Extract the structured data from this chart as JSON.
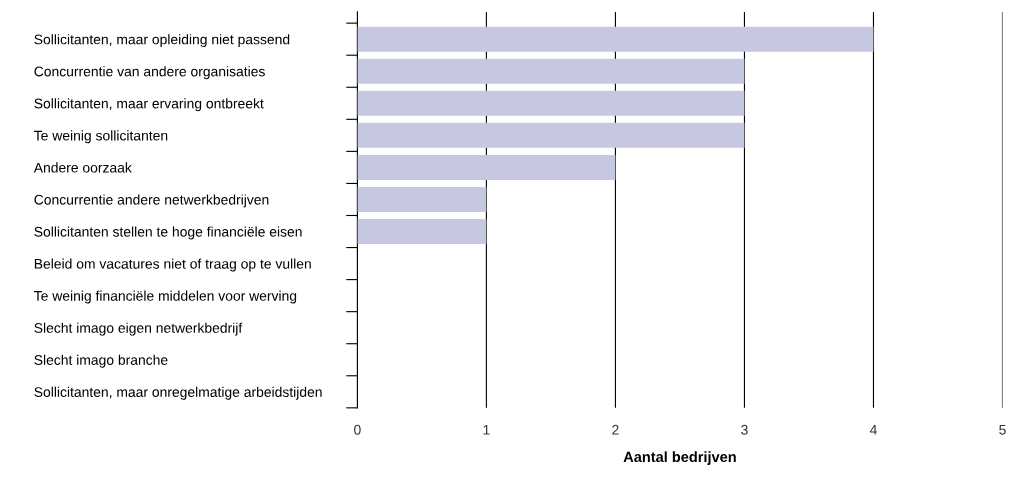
{
  "chart_data": {
    "type": "bar",
    "orientation": "horizontal",
    "xlabel": "Aantal bedrijven",
    "categories": [
      "Sollicitanten, maar opleiding niet passend",
      "Concurrentie van andere organisaties",
      "Sollicitanten, maar ervaring ontbreekt",
      "Te weinig sollicitanten",
      "Andere oorzaak",
      "Concurrentie andere netwerkbedrijven",
      "Sollicitanten stellen te hoge financiële eisen",
      "Beleid om vacatures niet of traag op te vullen",
      "Te weinig financiële middelen voor werving",
      "Slecht imago eigen netwerkbedrijf",
      "Slecht imago branche",
      "Sollicitanten, maar onregelmatige arbeidstijden"
    ],
    "values": [
      4,
      3,
      3,
      3,
      2,
      1,
      1,
      0,
      0,
      0,
      0,
      0
    ],
    "color": "#c5c8e0",
    "xlim": [
      0,
      5
    ],
    "xticks": [
      0,
      1,
      2,
      3,
      4,
      5
    ],
    "grid": "x",
    "legend": false
  }
}
